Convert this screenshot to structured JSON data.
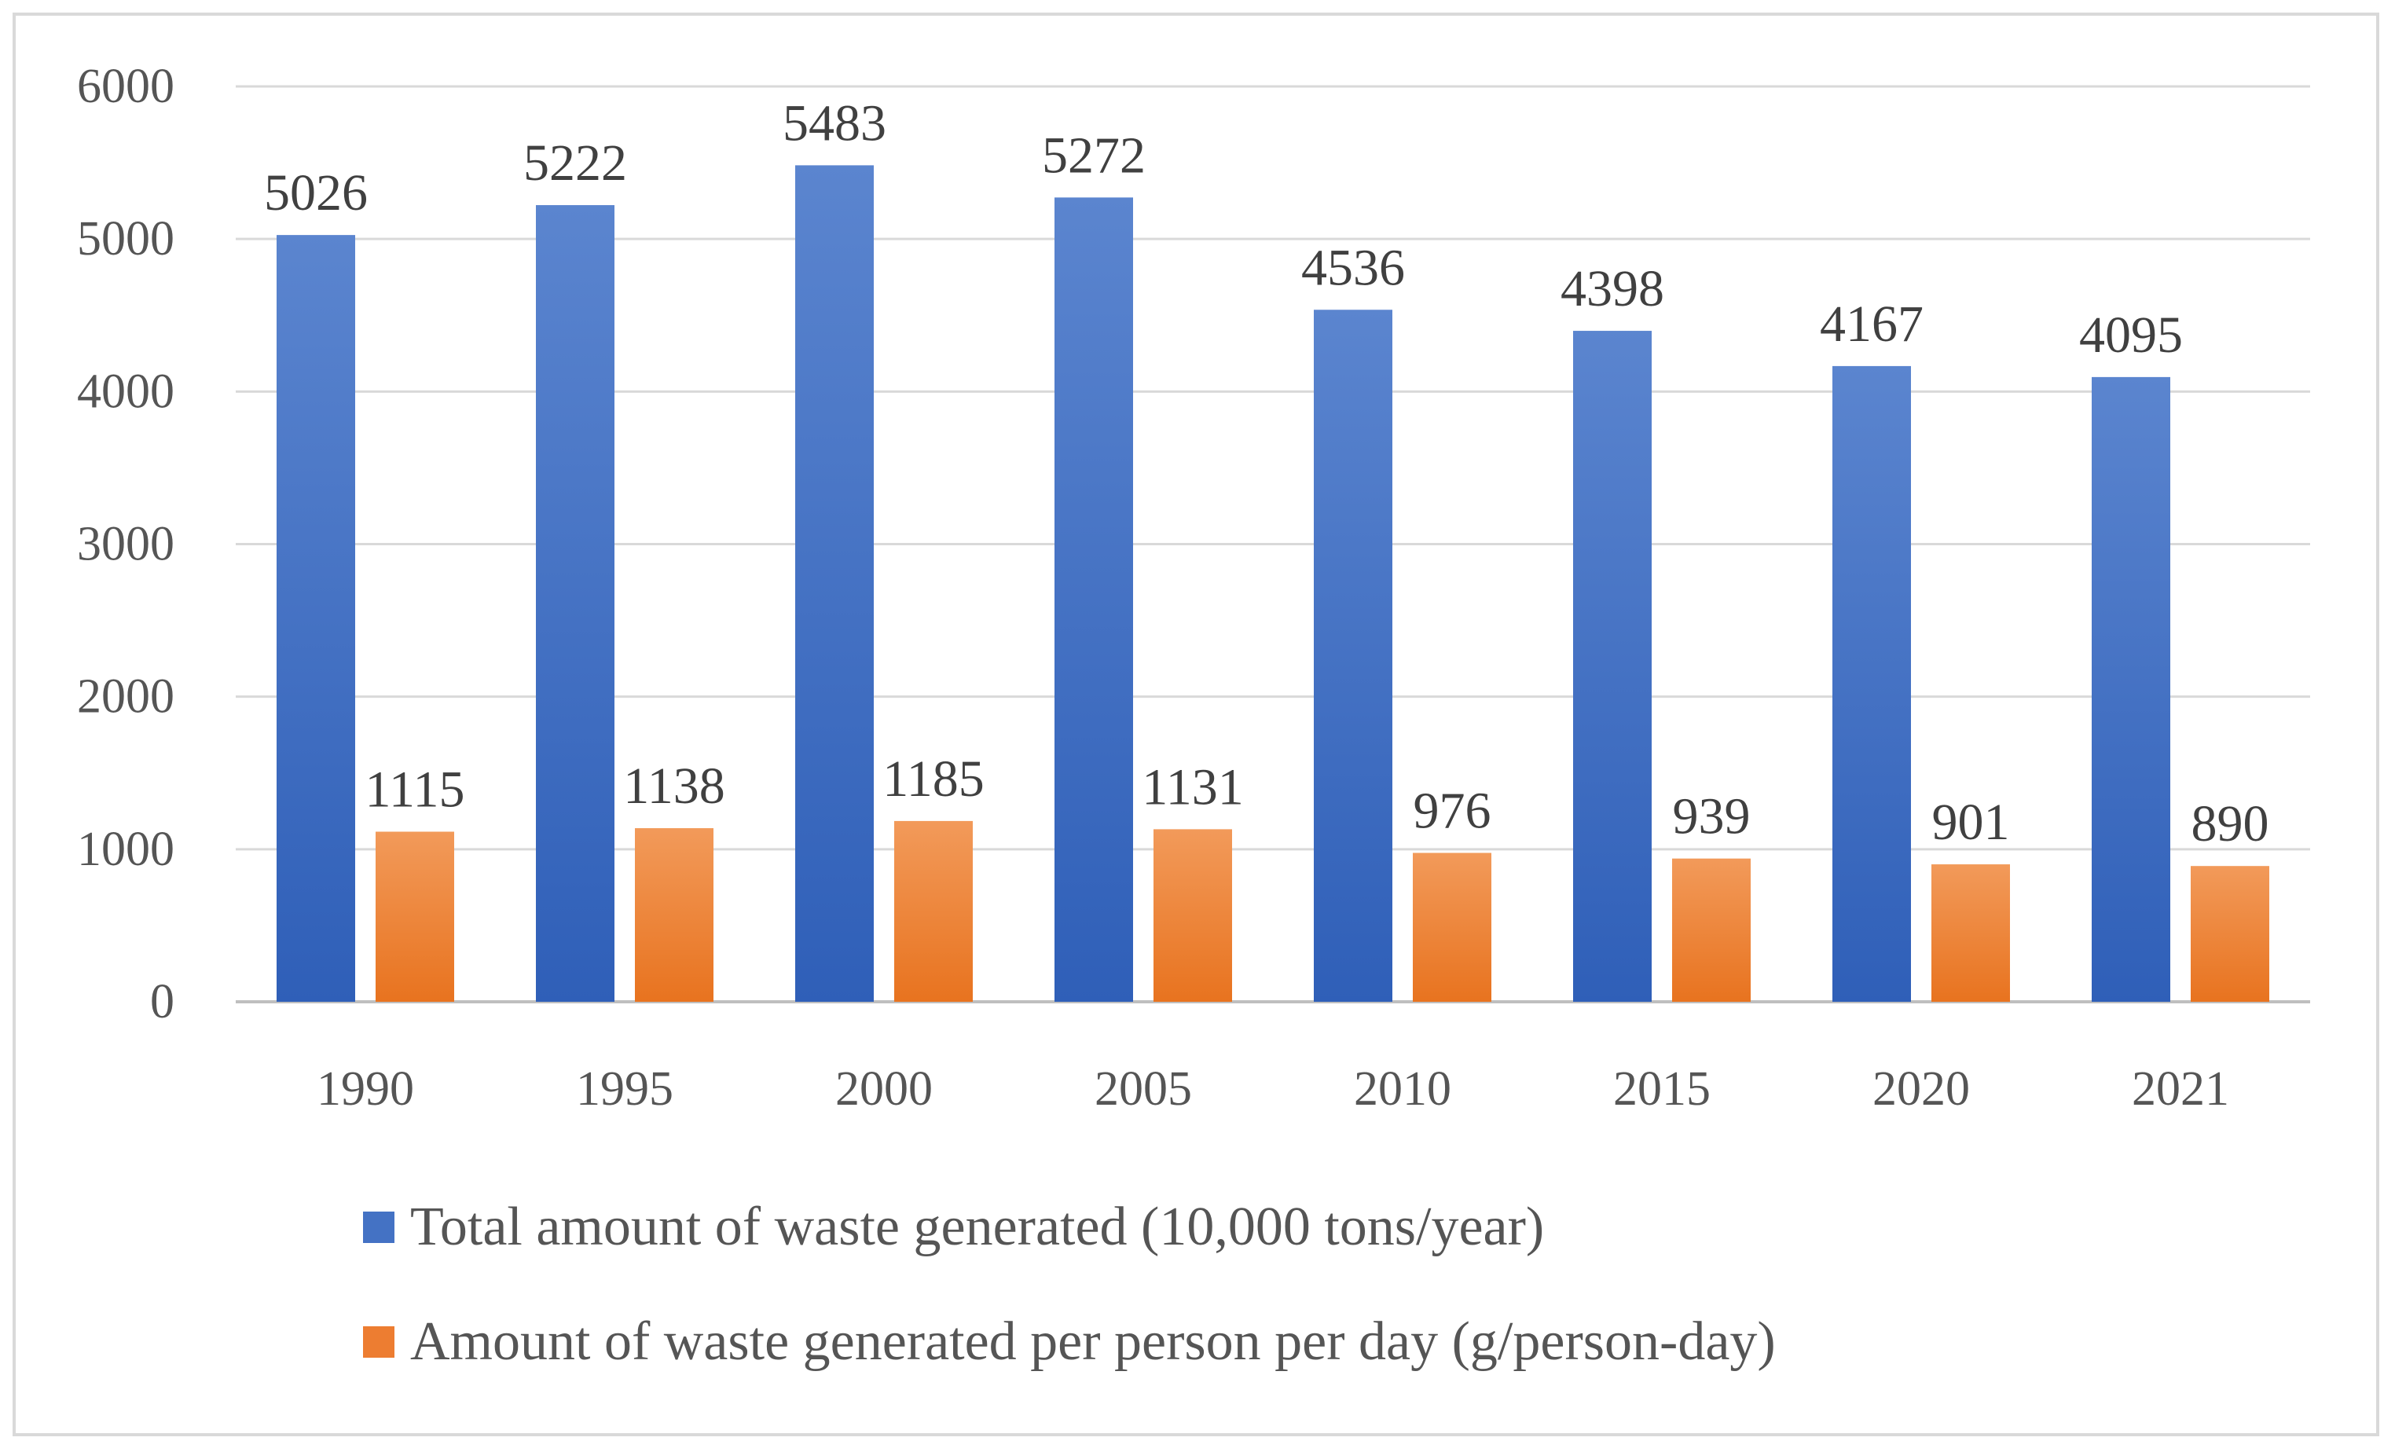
{
  "chart_data": {
    "type": "bar",
    "title": "",
    "xlabel": "",
    "ylabel": "",
    "categories": [
      "1990",
      "1995",
      "2000",
      "2005",
      "2010",
      "2015",
      "2020",
      "2021"
    ],
    "series": [
      {
        "name": "Total amount of waste generated (10,000 tons/year)",
        "values": [
          5026,
          5222,
          5483,
          5272,
          4536,
          4398,
          4167,
          4095
        ],
        "color_top": "#5b85cf",
        "color_bottom": "#2f5fb8",
        "legend_color": "#4472c4"
      },
      {
        "name": "Amount of waste generated per person per day (g/person-day)",
        "values": [
          1115,
          1138,
          1185,
          1131,
          976,
          939,
          901,
          890
        ],
        "color_top": "#f29a5a",
        "color_bottom": "#e8731f",
        "legend_color": "#ed7d31"
      }
    ],
    "ylim": [
      0,
      6000
    ],
    "yticks": [
      0,
      1000,
      2000,
      3000,
      4000,
      5000,
      6000
    ],
    "grid": true,
    "legend_position": "bottom"
  }
}
